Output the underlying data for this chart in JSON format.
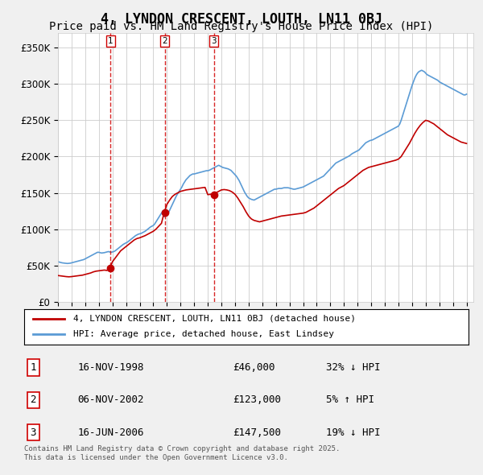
{
  "title": "4, LYNDON CRESCENT, LOUTH, LN11 0BJ",
  "subtitle": "Price paid vs. HM Land Registry's House Price Index (HPI)",
  "title_fontsize": 12,
  "subtitle_fontsize": 10,
  "background_color": "#f0f0f0",
  "plot_background": "#ffffff",
  "ylabel": "",
  "ylim": [
    0,
    370000
  ],
  "yticks": [
    0,
    50000,
    100000,
    150000,
    200000,
    250000,
    300000,
    350000
  ],
  "ytick_labels": [
    "£0",
    "£50K",
    "£100K",
    "£150K",
    "£200K",
    "£250K",
    "£300K",
    "£350K"
  ],
  "hpi_color": "#5b9bd5",
  "price_color": "#c00000",
  "vline_color": "#d00000",
  "marker_color": "#c00000",
  "sale_dates": [
    1998.87,
    2002.84,
    2006.46
  ],
  "sale_prices": [
    46000,
    123000,
    147500
  ],
  "sale_labels": [
    "1",
    "2",
    "3"
  ],
  "vline_style": "--",
  "vline_alpha": 0.8,
  "legend_label_price": "4, LYNDON CRESCENT, LOUTH, LN11 0BJ (detached house)",
  "legend_label_hpi": "HPI: Average price, detached house, East Lindsey",
  "table_data": [
    [
      "1",
      "16-NOV-1998",
      "£46,000",
      "32% ↓ HPI"
    ],
    [
      "2",
      "06-NOV-2002",
      "£123,000",
      "5% ↑ HPI"
    ],
    [
      "3",
      "16-JUN-2006",
      "£147,500",
      "19% ↓ HPI"
    ]
  ],
  "footnote": "Contains HM Land Registry data © Crown copyright and database right 2025.\nThis data is licensed under the Open Government Licence v3.0.",
  "hpi_years": [
    1995.0,
    1995.1,
    1995.2,
    1995.3,
    1995.4,
    1995.5,
    1995.6,
    1995.7,
    1995.8,
    1995.9,
    1996.0,
    1996.1,
    1996.2,
    1996.3,
    1996.4,
    1996.5,
    1996.6,
    1996.7,
    1996.8,
    1996.9,
    1997.0,
    1997.1,
    1997.2,
    1997.3,
    1997.4,
    1997.5,
    1997.6,
    1997.7,
    1997.8,
    1997.9,
    1998.0,
    1998.1,
    1998.2,
    1998.3,
    1998.4,
    1998.5,
    1998.6,
    1998.7,
    1998.8,
    1998.9,
    1999.0,
    1999.1,
    1999.2,
    1999.3,
    1999.4,
    1999.5,
    1999.6,
    1999.7,
    1999.8,
    1999.9,
    2000.0,
    2000.1,
    2000.2,
    2000.3,
    2000.4,
    2000.5,
    2000.6,
    2000.7,
    2000.8,
    2000.9,
    2001.0,
    2001.1,
    2001.2,
    2001.3,
    2001.4,
    2001.5,
    2001.6,
    2001.7,
    2001.8,
    2001.9,
    2002.0,
    2002.1,
    2002.2,
    2002.3,
    2002.4,
    2002.5,
    2002.6,
    2002.7,
    2002.8,
    2002.9,
    2003.0,
    2003.1,
    2003.2,
    2003.3,
    2003.4,
    2003.5,
    2003.6,
    2003.7,
    2003.8,
    2003.9,
    2004.0,
    2004.1,
    2004.2,
    2004.3,
    2004.4,
    2004.5,
    2004.6,
    2004.7,
    2004.8,
    2004.9,
    2005.0,
    2005.1,
    2005.2,
    2005.3,
    2005.4,
    2005.5,
    2005.6,
    2005.7,
    2005.8,
    2005.9,
    2006.0,
    2006.1,
    2006.2,
    2006.3,
    2006.4,
    2006.5,
    2006.6,
    2006.7,
    2006.8,
    2006.9,
    2007.0,
    2007.1,
    2007.2,
    2007.3,
    2007.4,
    2007.5,
    2007.6,
    2007.7,
    2007.8,
    2007.9,
    2008.0,
    2008.1,
    2008.2,
    2008.3,
    2008.4,
    2008.5,
    2008.6,
    2008.7,
    2008.8,
    2008.9,
    2009.0,
    2009.1,
    2009.2,
    2009.3,
    2009.4,
    2009.5,
    2009.6,
    2009.7,
    2009.8,
    2009.9,
    2010.0,
    2010.1,
    2010.2,
    2010.3,
    2010.4,
    2010.5,
    2010.6,
    2010.7,
    2010.8,
    2010.9,
    2011.0,
    2011.1,
    2011.2,
    2011.3,
    2011.4,
    2011.5,
    2011.6,
    2011.7,
    2011.8,
    2011.9,
    2012.0,
    2012.1,
    2012.2,
    2012.3,
    2012.4,
    2012.5,
    2012.6,
    2012.7,
    2012.8,
    2012.9,
    2013.0,
    2013.1,
    2013.2,
    2013.3,
    2013.4,
    2013.5,
    2013.6,
    2013.7,
    2013.8,
    2013.9,
    2014.0,
    2014.1,
    2014.2,
    2014.3,
    2014.4,
    2014.5,
    2014.6,
    2014.7,
    2014.8,
    2014.9,
    2015.0,
    2015.1,
    2015.2,
    2015.3,
    2015.4,
    2015.5,
    2015.6,
    2015.7,
    2015.8,
    2015.9,
    2016.0,
    2016.1,
    2016.2,
    2016.3,
    2016.4,
    2016.5,
    2016.6,
    2016.7,
    2016.8,
    2016.9,
    2017.0,
    2017.1,
    2017.2,
    2017.3,
    2017.4,
    2017.5,
    2017.6,
    2017.7,
    2017.8,
    2017.9,
    2018.0,
    2018.1,
    2018.2,
    2018.3,
    2018.4,
    2018.5,
    2018.6,
    2018.7,
    2018.8,
    2018.9,
    2019.0,
    2019.1,
    2019.2,
    2019.3,
    2019.4,
    2019.5,
    2019.6,
    2019.7,
    2019.8,
    2019.9,
    2020.0,
    2020.1,
    2020.2,
    2020.3,
    2020.4,
    2020.5,
    2020.6,
    2020.7,
    2020.8,
    2020.9,
    2021.0,
    2021.1,
    2021.2,
    2021.3,
    2021.4,
    2021.5,
    2021.6,
    2021.7,
    2021.8,
    2021.9,
    2022.0,
    2022.1,
    2022.2,
    2022.3,
    2022.4,
    2022.5,
    2022.6,
    2022.7,
    2022.8,
    2022.9,
    2023.0,
    2023.1,
    2023.2,
    2023.3,
    2023.4,
    2023.5,
    2023.6,
    2023.7,
    2023.8,
    2023.9,
    2024.0,
    2024.1,
    2024.2,
    2024.3,
    2024.4,
    2024.5,
    2024.6,
    2024.7,
    2024.8,
    2024.9,
    2025.0
  ],
  "hpi_values": [
    55000,
    54500,
    54000,
    53500,
    53200,
    53000,
    52800,
    52600,
    52800,
    53000,
    53500,
    54000,
    54500,
    55000,
    55500,
    56000,
    56500,
    57000,
    57500,
    58000,
    59000,
    60000,
    61000,
    62000,
    63000,
    64000,
    65000,
    66000,
    67000,
    68000,
    68000,
    67500,
    67000,
    67200,
    67500,
    68000,
    68500,
    69000,
    68500,
    68000,
    68500,
    69000,
    70000,
    71500,
    73000,
    74500,
    76000,
    77500,
    79000,
    80000,
    81000,
    82000,
    83500,
    85000,
    86500,
    88000,
    89500,
    91000,
    92000,
    93000,
    93500,
    94000,
    95000,
    96000,
    97000,
    98500,
    100000,
    101500,
    103000,
    104000,
    105000,
    107000,
    110000,
    113000,
    116000,
    119000,
    122000,
    125000,
    117000,
    118000,
    119000,
    122000,
    126000,
    130000,
    134000,
    138000,
    142000,
    146000,
    149000,
    152000,
    155000,
    158000,
    162000,
    165000,
    168000,
    170000,
    172000,
    174000,
    175000,
    176000,
    176000,
    176500,
    177000,
    177500,
    178000,
    178500,
    179000,
    179500,
    180000,
    180500,
    180500,
    181000,
    182000,
    183000,
    184000,
    185000,
    186000,
    187000,
    188000,
    187000,
    186000,
    185000,
    184500,
    184000,
    183500,
    183000,
    182000,
    181000,
    179000,
    177000,
    175000,
    173000,
    170000,
    167000,
    163000,
    159000,
    155000,
    151000,
    148000,
    145000,
    143000,
    142000,
    141000,
    140500,
    140000,
    141000,
    142000,
    143000,
    144000,
    145000,
    146000,
    147000,
    148000,
    149000,
    150000,
    151000,
    152000,
    153000,
    154000,
    155000,
    155000,
    155500,
    156000,
    156000,
    156000,
    156500,
    157000,
    157000,
    157000,
    157000,
    156500,
    156000,
    155500,
    155000,
    155000,
    155500,
    156000,
    156500,
    157000,
    157500,
    158000,
    159000,
    160000,
    161000,
    162000,
    163000,
    164000,
    165000,
    166000,
    167000,
    168000,
    169000,
    170000,
    171000,
    172000,
    173000,
    175000,
    177000,
    179000,
    181000,
    183000,
    185000,
    187000,
    189000,
    191000,
    192000,
    193000,
    194000,
    195000,
    196000,
    197000,
    198000,
    199000,
    200000,
    201000,
    202500,
    204000,
    205000,
    206000,
    207000,
    208000,
    209000,
    211000,
    213000,
    215000,
    217000,
    219000,
    220000,
    221000,
    222000,
    222500,
    223000,
    224000,
    225000,
    226000,
    227000,
    228000,
    229000,
    230000,
    231000,
    232000,
    233000,
    234000,
    235000,
    236000,
    237000,
    238000,
    239000,
    240000,
    241000,
    242000,
    245000,
    250000,
    256000,
    262000,
    268000,
    274000,
    280000,
    286000,
    292000,
    298000,
    303000,
    308000,
    312000,
    315000,
    317000,
    318000,
    319000,
    318000,
    317000,
    315000,
    313000,
    312000,
    311000,
    310000,
    309000,
    308000,
    307000,
    306000,
    305000,
    303000,
    302000,
    301000,
    300000,
    299000,
    298000,
    297000,
    296000,
    295000,
    294000,
    293000,
    292000,
    291000,
    290000,
    289000,
    288000,
    287000,
    286000,
    285000,
    285000,
    286000
  ],
  "price_years": [
    1995.0,
    1995.2,
    1995.4,
    1995.6,
    1995.8,
    1996.0,
    1996.2,
    1996.4,
    1996.6,
    1996.8,
    1997.0,
    1997.2,
    1997.4,
    1997.6,
    1997.8,
    1998.0,
    1998.2,
    1998.4,
    1998.6,
    1998.8,
    1999.0,
    1999.2,
    1999.4,
    1999.6,
    1999.8,
    2000.0,
    2000.2,
    2000.4,
    2000.6,
    2000.8,
    2001.0,
    2001.2,
    2001.4,
    2001.6,
    2001.8,
    2002.0,
    2002.2,
    2002.4,
    2002.6,
    2002.8,
    2003.0,
    2003.2,
    2003.4,
    2003.6,
    2003.8,
    2004.0,
    2004.2,
    2004.4,
    2004.6,
    2004.8,
    2005.0,
    2005.2,
    2005.4,
    2005.6,
    2005.8,
    2006.0,
    2006.2,
    2006.4,
    2006.6,
    2006.8,
    2007.0,
    2007.2,
    2007.4,
    2007.6,
    2007.8,
    2008.0,
    2008.2,
    2008.4,
    2008.6,
    2008.8,
    2009.0,
    2009.2,
    2009.4,
    2009.6,
    2009.8,
    2010.0,
    2010.2,
    2010.4,
    2010.6,
    2010.8,
    2011.0,
    2011.2,
    2011.4,
    2011.6,
    2011.8,
    2012.0,
    2012.2,
    2012.4,
    2012.6,
    2012.8,
    2013.0,
    2013.2,
    2013.4,
    2013.6,
    2013.8,
    2014.0,
    2014.2,
    2014.4,
    2014.6,
    2014.8,
    2015.0,
    2015.2,
    2015.4,
    2015.6,
    2015.8,
    2016.0,
    2016.2,
    2016.4,
    2016.6,
    2016.8,
    2017.0,
    2017.2,
    2017.4,
    2017.6,
    2017.8,
    2018.0,
    2018.2,
    2018.4,
    2018.6,
    2018.8,
    2019.0,
    2019.2,
    2019.4,
    2019.6,
    2019.8,
    2020.0,
    2020.2,
    2020.4,
    2020.6,
    2020.8,
    2021.0,
    2021.2,
    2021.4,
    2021.6,
    2021.8,
    2022.0,
    2022.2,
    2022.4,
    2022.6,
    2022.8,
    2023.0,
    2023.2,
    2023.4,
    2023.6,
    2023.8,
    2024.0,
    2024.2,
    2024.4,
    2024.6,
    2024.8,
    2025.0
  ],
  "price_values": [
    36000,
    35500,
    35000,
    34500,
    34200,
    34500,
    35000,
    35500,
    36000,
    36500,
    37500,
    38500,
    39500,
    41000,
    42000,
    42500,
    43000,
    43500,
    43000,
    46000,
    55000,
    60000,
    65000,
    70000,
    73000,
    76000,
    79000,
    82000,
    85000,
    87000,
    88000,
    89500,
    91000,
    93000,
    95000,
    97000,
    100000,
    104000,
    108000,
    123000,
    134000,
    140000,
    145000,
    148000,
    150000,
    152000,
    153000,
    154000,
    154500,
    155000,
    155500,
    156000,
    156500,
    157000,
    157500,
    147500,
    148000,
    149000,
    150000,
    152000,
    154000,
    154500,
    154000,
    153000,
    151000,
    148000,
    143000,
    137000,
    131000,
    124000,
    118000,
    114000,
    112000,
    111000,
    110000,
    111000,
    112000,
    113000,
    114000,
    115000,
    116000,
    117000,
    118000,
    118500,
    119000,
    119500,
    120000,
    120500,
    121000,
    121500,
    122000,
    123000,
    125000,
    127000,
    129000,
    132000,
    135000,
    138000,
    141000,
    144000,
    147000,
    150000,
    153000,
    156000,
    158000,
    160000,
    163000,
    166000,
    169000,
    172000,
    175000,
    178000,
    181000,
    183000,
    185000,
    186000,
    187000,
    188000,
    189000,
    190000,
    191000,
    192000,
    193000,
    194000,
    195000,
    196500,
    200000,
    206000,
    212000,
    218000,
    225000,
    232000,
    238000,
    243000,
    247000,
    250000,
    249000,
    247000,
    245000,
    242000,
    239000,
    236000,
    233000,
    230000,
    228000,
    226000,
    224000,
    222000,
    220000,
    219000,
    218000
  ]
}
